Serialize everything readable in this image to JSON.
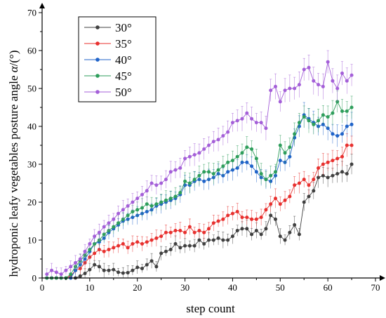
{
  "chart_data": {
    "type": "line",
    "xlabel": "step count",
    "ylabel": "hydroponic leafy vegetables posture angle",
    "ylabel_symbol": "α",
    "ylabel_unit": "/(°)",
    "xlim": [
      0,
      70
    ],
    "ylim": [
      0,
      70
    ],
    "xticks": [
      "0",
      "10",
      "20",
      "30",
      "40",
      "50",
      "60",
      "70"
    ],
    "yticks": [
      "0",
      "10",
      "20",
      "30",
      "40",
      "50",
      "60",
      "70"
    ],
    "legend_placement": "top-left",
    "series": [
      {
        "name": "30°",
        "color": "#404040",
        "points": [
          [
            1,
            0
          ],
          [
            2,
            0
          ],
          [
            3,
            0
          ],
          [
            4,
            0
          ],
          [
            5,
            0
          ],
          [
            6,
            0
          ],
          [
            7,
            0
          ],
          [
            8,
            0.5
          ],
          [
            9,
            1.2
          ],
          [
            10,
            2.2
          ],
          [
            11,
            3.5
          ],
          [
            12,
            3
          ],
          [
            13,
            2
          ],
          [
            14,
            2
          ],
          [
            15,
            2.2
          ],
          [
            16,
            1.5
          ],
          [
            17,
            1.3
          ],
          [
            18,
            1.4
          ],
          [
            19,
            2
          ],
          [
            20,
            2.8
          ],
          [
            21,
            2.5
          ],
          [
            22,
            3.5
          ],
          [
            23,
            4.5
          ],
          [
            24,
            3
          ],
          [
            25,
            6.5
          ],
          [
            26,
            7
          ],
          [
            27,
            7.5
          ],
          [
            28,
            9
          ],
          [
            29,
            8
          ],
          [
            30,
            8.5
          ],
          [
            31,
            8.5
          ],
          [
            32,
            8.5
          ],
          [
            33,
            10
          ],
          [
            34,
            9
          ],
          [
            35,
            10
          ],
          [
            36,
            10
          ],
          [
            37,
            10.5
          ],
          [
            38,
            10
          ],
          [
            39,
            10
          ],
          [
            40,
            11
          ],
          [
            41,
            12.5
          ],
          [
            42,
            13
          ],
          [
            43,
            13
          ],
          [
            44,
            11.5
          ],
          [
            45,
            12.5
          ],
          [
            46,
            11.5
          ],
          [
            47,
            13
          ],
          [
            48,
            16.5
          ],
          [
            49,
            15.5
          ],
          [
            50,
            11
          ],
          [
            51,
            10
          ],
          [
            52,
            12
          ],
          [
            53,
            14
          ],
          [
            54,
            11.5
          ],
          [
            55,
            20
          ],
          [
            56,
            21.5
          ],
          [
            57,
            23
          ],
          [
            58,
            26.5
          ],
          [
            59,
            27
          ],
          [
            60,
            26.5
          ],
          [
            61,
            27
          ],
          [
            62,
            27.5
          ],
          [
            63,
            28
          ],
          [
            64,
            27.5
          ],
          [
            65,
            30
          ]
        ]
      },
      {
        "name": "35°",
        "color": "#e8302e",
        "points": [
          [
            1,
            0
          ],
          [
            2,
            0
          ],
          [
            3,
            0
          ],
          [
            4,
            0
          ],
          [
            5,
            0
          ],
          [
            6,
            0.5
          ],
          [
            7,
            2
          ],
          [
            8,
            2.5
          ],
          [
            9,
            4
          ],
          [
            10,
            5.5
          ],
          [
            11,
            6.5
          ],
          [
            12,
            7.5
          ],
          [
            13,
            7
          ],
          [
            14,
            7.5
          ],
          [
            15,
            8
          ],
          [
            16,
            8.5
          ],
          [
            17,
            9
          ],
          [
            18,
            8
          ],
          [
            19,
            9
          ],
          [
            20,
            9.5
          ],
          [
            21,
            9
          ],
          [
            22,
            9.5
          ],
          [
            23,
            10
          ],
          [
            24,
            10.5
          ],
          [
            25,
            11
          ],
          [
            26,
            12
          ],
          [
            27,
            12
          ],
          [
            28,
            12.5
          ],
          [
            29,
            12.5
          ],
          [
            30,
            12
          ],
          [
            31,
            13.5
          ],
          [
            32,
            12
          ],
          [
            33,
            12.5
          ],
          [
            34,
            12
          ],
          [
            35,
            13
          ],
          [
            36,
            14.5
          ],
          [
            37,
            15
          ],
          [
            38,
            15.5
          ],
          [
            39,
            16.5
          ],
          [
            40,
            17
          ],
          [
            41,
            17.5
          ],
          [
            42,
            16
          ],
          [
            43,
            16
          ],
          [
            44,
            15.5
          ],
          [
            45,
            15.5
          ],
          [
            46,
            16
          ],
          [
            47,
            18
          ],
          [
            48,
            19.5
          ],
          [
            49,
            21
          ],
          [
            50,
            19.5
          ],
          [
            51,
            20.5
          ],
          [
            52,
            21.5
          ],
          [
            53,
            24.5
          ],
          [
            54,
            25
          ],
          [
            55,
            26
          ],
          [
            56,
            24.5
          ],
          [
            57,
            26
          ],
          [
            58,
            29
          ],
          [
            59,
            30
          ],
          [
            60,
            30.5
          ],
          [
            61,
            31
          ],
          [
            62,
            31.5
          ],
          [
            63,
            32
          ],
          [
            64,
            35
          ],
          [
            65,
            35
          ]
        ]
      },
      {
        "name": "40°",
        "color": "#1f63c9",
        "points": [
          [
            1,
            0
          ],
          [
            2,
            0
          ],
          [
            3,
            0
          ],
          [
            4,
            0
          ],
          [
            5,
            0
          ],
          [
            6,
            0
          ],
          [
            7,
            2
          ],
          [
            8,
            3.5
          ],
          [
            9,
            5
          ],
          [
            10,
            7
          ],
          [
            11,
            9
          ],
          [
            12,
            9.5
          ],
          [
            13,
            10.5
          ],
          [
            14,
            12
          ],
          [
            15,
            13
          ],
          [
            16,
            14
          ],
          [
            17,
            15
          ],
          [
            18,
            15.5
          ],
          [
            19,
            16
          ],
          [
            20,
            16.5
          ],
          [
            21,
            17
          ],
          [
            22,
            17.5
          ],
          [
            23,
            18
          ],
          [
            24,
            19
          ],
          [
            25,
            19.5
          ],
          [
            26,
            20
          ],
          [
            27,
            20.5
          ],
          [
            28,
            21
          ],
          [
            29,
            22
          ],
          [
            30,
            24.5
          ],
          [
            31,
            24.5
          ],
          [
            32,
            25.5
          ],
          [
            33,
            26
          ],
          [
            34,
            25.5
          ],
          [
            35,
            26
          ],
          [
            36,
            26.5
          ],
          [
            37,
            27.5
          ],
          [
            38,
            27
          ],
          [
            39,
            28
          ],
          [
            40,
            28.5
          ],
          [
            41,
            29
          ],
          [
            42,
            30.5
          ],
          [
            43,
            30.5
          ],
          [
            44,
            29.5
          ],
          [
            45,
            28
          ],
          [
            46,
            26.5
          ],
          [
            47,
            26
          ],
          [
            48,
            25.5
          ],
          [
            49,
            27
          ],
          [
            50,
            31
          ],
          [
            51,
            30.5
          ],
          [
            52,
            32
          ],
          [
            53,
            37
          ],
          [
            54,
            40
          ],
          [
            55,
            43
          ],
          [
            56,
            42
          ],
          [
            57,
            41
          ],
          [
            58,
            40
          ],
          [
            59,
            40.5
          ],
          [
            60,
            39.5
          ],
          [
            61,
            38
          ],
          [
            62,
            37.5
          ],
          [
            63,
            38
          ],
          [
            64,
            40
          ],
          [
            65,
            40.5
          ]
        ]
      },
      {
        "name": "45°",
        "color": "#2e9e5b",
        "points": [
          [
            1,
            0
          ],
          [
            2,
            0
          ],
          [
            3,
            0
          ],
          [
            4,
            0
          ],
          [
            5,
            0
          ],
          [
            6,
            1
          ],
          [
            7,
            3
          ],
          [
            8,
            4.5
          ],
          [
            9,
            6
          ],
          [
            10,
            7.5
          ],
          [
            11,
            9
          ],
          [
            12,
            10
          ],
          [
            13,
            11.5
          ],
          [
            14,
            12.5
          ],
          [
            15,
            13.5
          ],
          [
            16,
            14.5
          ],
          [
            17,
            15.5
          ],
          [
            18,
            16.5
          ],
          [
            19,
            17.5
          ],
          [
            20,
            18
          ],
          [
            21,
            18.5
          ],
          [
            22,
            19.5
          ],
          [
            23,
            19
          ],
          [
            24,
            19.5
          ],
          [
            25,
            20
          ],
          [
            26,
            20.5
          ],
          [
            27,
            21
          ],
          [
            28,
            21.5
          ],
          [
            29,
            22.5
          ],
          [
            30,
            25.5
          ],
          [
            31,
            25
          ],
          [
            32,
            26
          ],
          [
            33,
            27
          ],
          [
            34,
            28
          ],
          [
            35,
            28
          ],
          [
            36,
            27.5
          ],
          [
            37,
            28.5
          ],
          [
            38,
            29.5
          ],
          [
            39,
            30.5
          ],
          [
            40,
            31
          ],
          [
            41,
            32
          ],
          [
            42,
            33
          ],
          [
            43,
            34.5
          ],
          [
            44,
            34
          ],
          [
            45,
            31.5
          ],
          [
            46,
            27.5
          ],
          [
            47,
            26
          ],
          [
            48,
            27
          ],
          [
            49,
            28
          ],
          [
            50,
            35
          ],
          [
            51,
            33
          ],
          [
            52,
            34.5
          ],
          [
            53,
            38
          ],
          [
            54,
            41
          ],
          [
            55,
            42.5
          ],
          [
            56,
            41.5
          ],
          [
            57,
            40.5
          ],
          [
            58,
            41.5
          ],
          [
            59,
            43
          ],
          [
            60,
            42.5
          ],
          [
            61,
            43.5
          ],
          [
            62,
            46.5
          ],
          [
            63,
            44
          ],
          [
            64,
            44
          ],
          [
            65,
            45
          ]
        ]
      },
      {
        "name": "50°",
        "color": "#a45fd8",
        "points": [
          [
            1,
            1
          ],
          [
            2,
            2
          ],
          [
            3,
            1.5
          ],
          [
            4,
            1
          ],
          [
            5,
            2
          ],
          [
            6,
            3
          ],
          [
            7,
            4
          ],
          [
            8,
            5
          ],
          [
            9,
            7
          ],
          [
            10,
            9
          ],
          [
            11,
            11
          ],
          [
            12,
            12
          ],
          [
            13,
            13.5
          ],
          [
            14,
            14.5
          ],
          [
            15,
            15.5
          ],
          [
            16,
            17
          ],
          [
            17,
            18
          ],
          [
            18,
            19
          ],
          [
            19,
            20
          ],
          [
            20,
            21
          ],
          [
            21,
            22
          ],
          [
            22,
            23
          ],
          [
            23,
            25
          ],
          [
            24,
            24.5
          ],
          [
            25,
            25
          ],
          [
            26,
            26
          ],
          [
            27,
            28
          ],
          [
            28,
            28.5
          ],
          [
            29,
            29
          ],
          [
            30,
            31.5
          ],
          [
            31,
            32
          ],
          [
            32,
            32.5
          ],
          [
            33,
            33
          ],
          [
            34,
            34
          ],
          [
            35,
            35
          ],
          [
            36,
            36
          ],
          [
            37,
            36.5
          ],
          [
            38,
            37.5
          ],
          [
            39,
            38.5
          ],
          [
            40,
            41
          ],
          [
            41,
            41.5
          ],
          [
            42,
            42
          ],
          [
            43,
            43.5
          ],
          [
            44,
            42
          ],
          [
            45,
            41
          ],
          [
            46,
            41
          ],
          [
            47,
            39.5
          ],
          [
            48,
            49.5
          ],
          [
            49,
            50.5
          ],
          [
            50,
            46.5
          ],
          [
            51,
            49.5
          ],
          [
            52,
            50
          ],
          [
            53,
            50
          ],
          [
            54,
            51
          ],
          [
            55,
            55
          ],
          [
            56,
            55.5
          ],
          [
            57,
            52
          ],
          [
            58,
            51
          ],
          [
            59,
            50.5
          ],
          [
            60,
            57
          ],
          [
            61,
            52
          ],
          [
            62,
            50
          ],
          [
            63,
            54
          ],
          [
            64,
            52
          ],
          [
            65,
            53.5
          ]
        ]
      }
    ]
  }
}
